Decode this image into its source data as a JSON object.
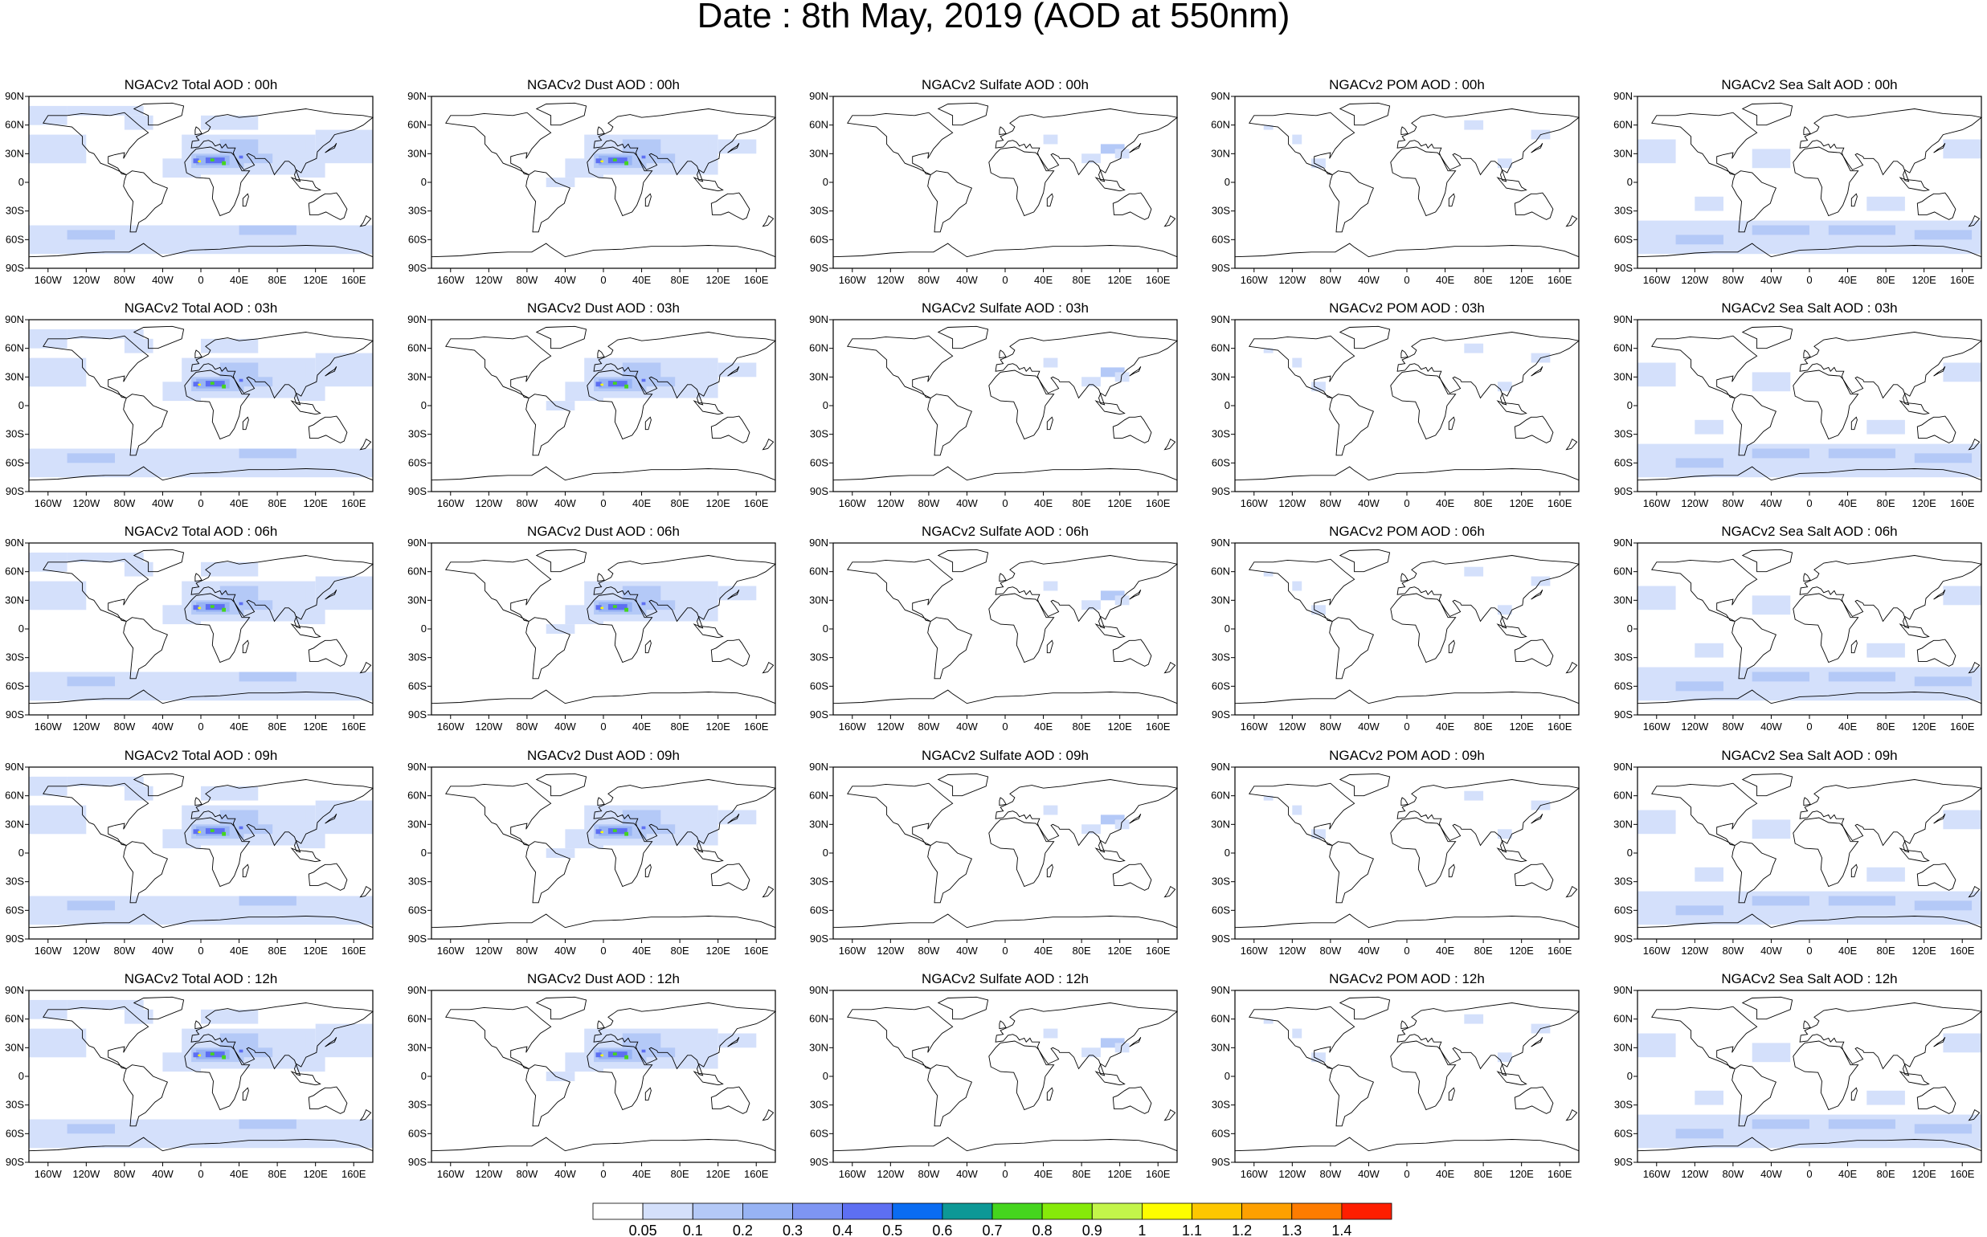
{
  "title": "Date : 8th May, 2019 (AOD at 550nm)",
  "lat_ticks": [
    "90N",
    "60N",
    "30N",
    "0",
    "30S",
    "60S",
    "90S"
  ],
  "lon_ticks": [
    "160W",
    "120W",
    "80W",
    "40W",
    "0",
    "40E",
    "80E",
    "120E",
    "160E"
  ],
  "rows": [
    {
      "hour": "00h",
      "titles": [
        "NGACv2 Total AOD : 00h",
        "NGACv2 Dust AOD : 00h",
        "NGACv2 Sulfate AOD : 00h",
        "NGACv2 POM AOD : 00h",
        "NGACv2 Sea Salt AOD : 00h"
      ]
    },
    {
      "hour": "03h",
      "titles": [
        "NGACv2 Total AOD : 03h",
        "NGACv2 Dust AOD : 03h",
        "NGACv2 Sulfate AOD : 03h",
        "NGACv2 POM AOD : 03h",
        "NGACv2 Sea Salt AOD : 03h"
      ]
    },
    {
      "hour": "06h",
      "titles": [
        "NGACv2 Total AOD : 06h",
        "NGACv2 Dust AOD : 06h",
        "NGACv2 Sulfate AOD : 06h",
        "NGACv2 POM AOD : 06h",
        "NGACv2 Sea Salt AOD : 06h"
      ]
    },
    {
      "hour": "09h",
      "titles": [
        "NGACv2 Total AOD : 09h",
        "NGACv2 Dust AOD : 09h",
        "NGACv2 Sulfate AOD : 09h",
        "NGACv2 POM AOD : 09h",
        "NGACv2 Sea Salt  AOD : 09h"
      ]
    },
    {
      "hour": "12h",
      "titles": [
        "NGACv2 Total AOD  : 12h",
        "NGACv2 Dust AOD : 12h",
        "NGACv2 Sulfate AOD : 12h",
        "NGACv2 POM  AOD : 12h",
        "NGACv2 Sea Salt  AOD : 12h"
      ]
    }
  ],
  "colorbar": {
    "labels": [
      "0.05",
      "0.1",
      "0.2",
      "0.3",
      "0.4",
      "0.5",
      "0.6",
      "0.7",
      "0.8",
      "0.9",
      "1",
      "1.1",
      "1.2",
      "1.3",
      "1.4"
    ],
    "colors": [
      "#ffffff",
      "#d4e0fb",
      "#b4c9f7",
      "#97b3f4",
      "#7e95f3",
      "#5d6ff2",
      "#0a6cf2",
      "#0d9896",
      "#45d51e",
      "#86ea0a",
      "#c3f54a",
      "#fdfd00",
      "#fdc700",
      "#fea000",
      "#fe7c00",
      "#fe1e00"
    ]
  },
  "aerosol_colors": {
    "light": "#d4e0fb",
    "mid": "#b4c9f7",
    "strong": "#97b3f4",
    "heavy": "#5d6ff2",
    "hot": "#45d51e",
    "peak": "#fdfd00"
  },
  "legend_icon": "colorbar-icon"
}
